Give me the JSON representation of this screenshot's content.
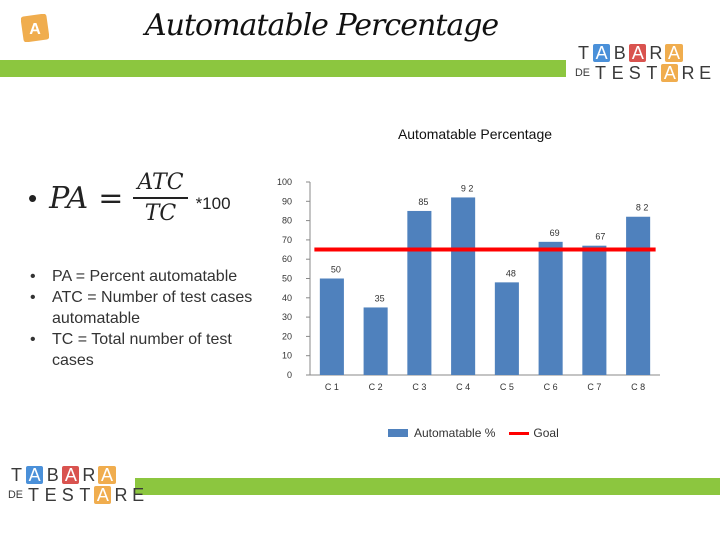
{
  "slide": {
    "title": "Automatable Percentage",
    "logo_letter": "A",
    "accent_color": "#8cc63f"
  },
  "brand": {
    "row1": [
      {
        "ch": "T",
        "box": null
      },
      {
        "ch": "A",
        "box": "#4a90d9"
      },
      {
        "ch": "B",
        "box": null
      },
      {
        "ch": "A",
        "box": "#d9534f"
      },
      {
        "ch": "R",
        "box": null
      },
      {
        "ch": "A",
        "box": "#f0ad4e"
      }
    ],
    "row2_prefix": "DE",
    "row2": [
      {
        "ch": "T",
        "box": null
      },
      {
        "ch": "E",
        "box": null
      },
      {
        "ch": "S",
        "box": null
      },
      {
        "ch": "T",
        "box": null
      },
      {
        "ch": "A",
        "box": "#f0ad4e"
      },
      {
        "ch": "R",
        "box": null
      },
      {
        "ch": "E",
        "box": null
      }
    ]
  },
  "formula": {
    "bullet": "•",
    "lhs": "PA",
    "eq": "=",
    "numerator": "ATC",
    "denominator": "TC",
    "multiplier": "*100"
  },
  "definitions": [
    "PA = Percent automatable",
    "ATC = Number of test cases automatable",
    "TC = Total number of test cases"
  ],
  "chart_data": {
    "type": "bar",
    "title": "Automatable Percentage",
    "categories": [
      "C 1",
      "C 2",
      "C 3",
      "C 4",
      "C 5",
      "C 6",
      "C 7",
      "C 8"
    ],
    "series": [
      {
        "name": "Automatable %",
        "type": "bar",
        "values": [
          50,
          35,
          85,
          92,
          48,
          69,
          67,
          82
        ],
        "color": "#4f81bd"
      },
      {
        "name": "Goal",
        "type": "line",
        "values": [
          65,
          65,
          65,
          65,
          65,
          65,
          65,
          65
        ],
        "color": "#ff0000"
      }
    ],
    "data_labels": [
      "50",
      "35",
      "85",
      "9 2",
      "48",
      "69",
      "67",
      "8 2"
    ],
    "ylim": [
      0,
      100
    ],
    "yticks": [
      0,
      10,
      20,
      30,
      40,
      50,
      60,
      70,
      80,
      90,
      100
    ],
    "ytick_labels": [
      "0",
      "10",
      "20",
      "30",
      "40",
      "50",
      "60",
      "70",
      "80",
      "90",
      "100"
    ],
    "xlabel": "",
    "ylabel": "",
    "grid": false,
    "legend": "bottom"
  }
}
